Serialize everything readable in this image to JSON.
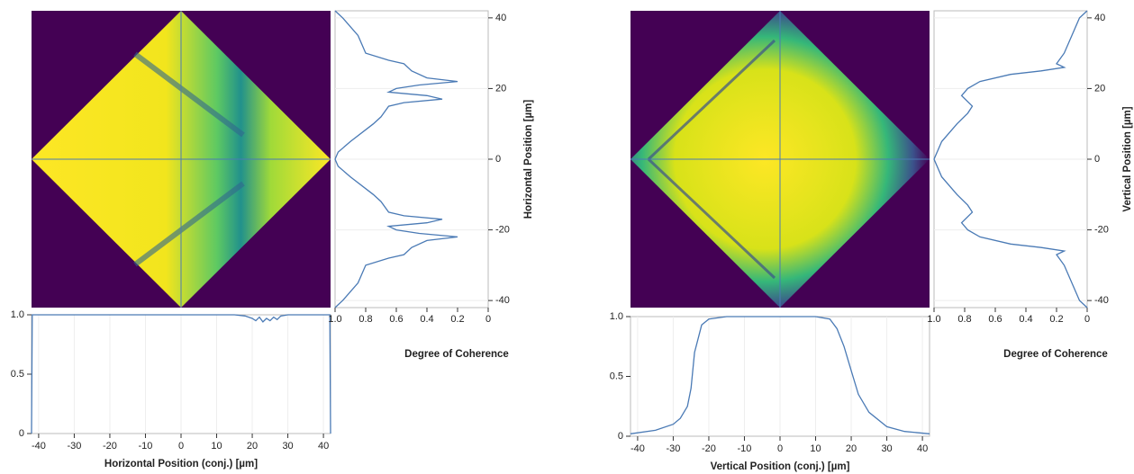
{
  "chart_data": [
    {
      "type": "line",
      "orientation": "horizontal",
      "xlabel": "Horizontal Position (conj.) [µm]",
      "color": "#4a7ab5",
      "grid": true,
      "x": [
        -42,
        -41.8,
        -40,
        -30,
        -20,
        -10,
        0,
        10,
        15,
        18,
        20,
        21,
        22,
        23,
        24,
        25,
        26,
        27,
        28,
        30,
        35,
        40,
        41.8,
        42
      ],
      "values": [
        0,
        1,
        1,
        1,
        1,
        1,
        1,
        1,
        1,
        0.99,
        0.97,
        0.95,
        0.98,
        0.94,
        0.97,
        0.95,
        0.98,
        0.96,
        0.99,
        1,
        1,
        1,
        1,
        0
      ],
      "xlim": [
        -42,
        42
      ],
      "xticks": [
        -40,
        -30,
        -20,
        -10,
        0,
        10,
        20,
        30,
        40
      ],
      "ylim": [
        0,
        1
      ],
      "yticks": [
        0,
        0.5,
        {
          "value": 1,
          "label": "1.0"
        }
      ]
    },
    {
      "type": "line",
      "orientation": "vertical",
      "xlabel": "Horizontal Position [µm]",
      "ylabel": "Degree of Coherence",
      "color": "#4a7ab5",
      "grid": true,
      "x": [
        -42,
        -40,
        -35,
        -30,
        -28,
        -27,
        -25,
        -23,
        -22,
        -21,
        -20,
        -19,
        -18,
        -17,
        -16,
        -15,
        -12,
        -10,
        -5,
        -2,
        0,
        2,
        5,
        10,
        12,
        15,
        16,
        17,
        18,
        19,
        20,
        21,
        22,
        23,
        25,
        27,
        28,
        30,
        35,
        40,
        42
      ],
      "values": [
        1,
        0.95,
        0.85,
        0.8,
        0.65,
        0.55,
        0.5,
        0.4,
        0.2,
        0.45,
        0.6,
        0.65,
        0.4,
        0.3,
        0.55,
        0.65,
        0.7,
        0.75,
        0.9,
        0.98,
        1,
        0.98,
        0.9,
        0.75,
        0.7,
        0.65,
        0.55,
        0.3,
        0.4,
        0.65,
        0.6,
        0.45,
        0.2,
        0.4,
        0.5,
        0.55,
        0.65,
        0.8,
        0.85,
        0.95,
        1
      ],
      "xlim": [
        -42,
        42
      ],
      "xticks": [
        -40,
        -20,
        0,
        20,
        40
      ],
      "ylim": [
        1,
        0
      ],
      "yticks": [
        {
          "value": 1,
          "label": "1.0"
        },
        0.8,
        0.6,
        0.4,
        0.2,
        0
      ]
    },
    {
      "type": "line",
      "orientation": "horizontal",
      "xlabel": "Vertical Position (conj.) [µm]",
      "color": "#4a7ab5",
      "grid": true,
      "x": [
        -42,
        -35,
        -30,
        -28,
        -26,
        -25,
        -24,
        -22,
        -20,
        -15,
        0,
        10,
        14,
        16,
        18,
        20,
        22,
        25,
        30,
        35,
        42
      ],
      "values": [
        0.02,
        0.05,
        0.1,
        0.15,
        0.25,
        0.4,
        0.7,
        0.93,
        0.98,
        1,
        1,
        1,
        0.98,
        0.9,
        0.75,
        0.55,
        0.35,
        0.2,
        0.08,
        0.04,
        0.02
      ],
      "xlim": [
        -42,
        42
      ],
      "xticks": [
        -40,
        -30,
        -20,
        -10,
        0,
        10,
        20,
        30,
        40
      ],
      "ylim": [
        0,
        1
      ],
      "yticks": [
        0,
        0.5,
        {
          "value": 1,
          "label": "1.0"
        }
      ]
    },
    {
      "type": "line",
      "orientation": "vertical",
      "xlabel": "Vertical Position [µm]",
      "ylabel": "Degree of Coherence",
      "color": "#4a7ab5",
      "grid": true,
      "x": [
        -42,
        -40,
        -35,
        -30,
        -27,
        -26,
        -25,
        -24,
        -22,
        -20,
        -18,
        -15,
        -13,
        -10,
        -5,
        0,
        5,
        10,
        13,
        15,
        18,
        20,
        22,
        24,
        25,
        26,
        27,
        30,
        35,
        40,
        42
      ],
      "values": [
        0,
        0.05,
        0.1,
        0.15,
        0.2,
        0.15,
        0.3,
        0.5,
        0.7,
        0.78,
        0.82,
        0.75,
        0.78,
        0.85,
        0.95,
        1,
        0.95,
        0.85,
        0.78,
        0.75,
        0.82,
        0.78,
        0.7,
        0.5,
        0.3,
        0.15,
        0.2,
        0.15,
        0.1,
        0.05,
        0
      ],
      "xlim": [
        -42,
        42
      ],
      "xticks": [
        -40,
        -20,
        0,
        20,
        40
      ],
      "ylim": [
        1,
        0
      ],
      "yticks": [
        {
          "value": 1,
          "label": "1.0"
        },
        0.8,
        0.6,
        0.4,
        0.2,
        0
      ]
    }
  ]
}
